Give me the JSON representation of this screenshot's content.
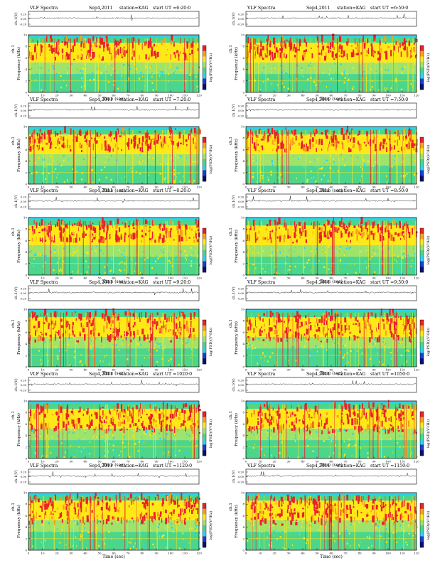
{
  "chart_data": {
    "type": "heatmap",
    "header": {
      "label": "VLF Spectra",
      "date": "Sep4,2011",
      "station": "station=KAG",
      "start_prefix": "start UT ="
    },
    "top_strip": {
      "ylabel": "ch.1(V)",
      "yticks": [
        "0.20",
        "0.00",
        "-0.20"
      ]
    },
    "spectrogram": {
      "ylabel_top": "ch.1",
      "ylabel": "Frequency (kHz)",
      "yticks": [
        0,
        2,
        4,
        6,
        8,
        10
      ],
      "ylim": [
        0,
        10
      ],
      "xlabel": "Time (sec)",
      "xticks": [
        0,
        10,
        20,
        30,
        40,
        50,
        60,
        70,
        80,
        90,
        100,
        110,
        120
      ],
      "xlim": [
        0,
        120
      ],
      "colorbar_label": "log(PSD)(V²/Hz)"
    },
    "colors": {
      "red": "#e8222a",
      "orange": "#f7a21b",
      "yellow": "#ffe818",
      "lightgreen": "#9fe36b",
      "green": "#4bd68a",
      "cyan": "#2fd3e6",
      "blue": "#1a3fd0",
      "navy": "#0a1070"
    },
    "panels": [
      {
        "start_ut": "6:20:0"
      },
      {
        "start_ut": "6:50:0"
      },
      {
        "start_ut": "7:20:0"
      },
      {
        "start_ut": "7:50:0"
      },
      {
        "start_ut": "8:20:0"
      },
      {
        "start_ut": "8:50:0"
      },
      {
        "start_ut": "9:20:0"
      },
      {
        "start_ut": "9:50:0"
      },
      {
        "start_ut": "1020:0"
      },
      {
        "start_ut": "1050:0"
      },
      {
        "start_ut": "1120:0"
      },
      {
        "start_ut": "1150:0"
      }
    ]
  }
}
